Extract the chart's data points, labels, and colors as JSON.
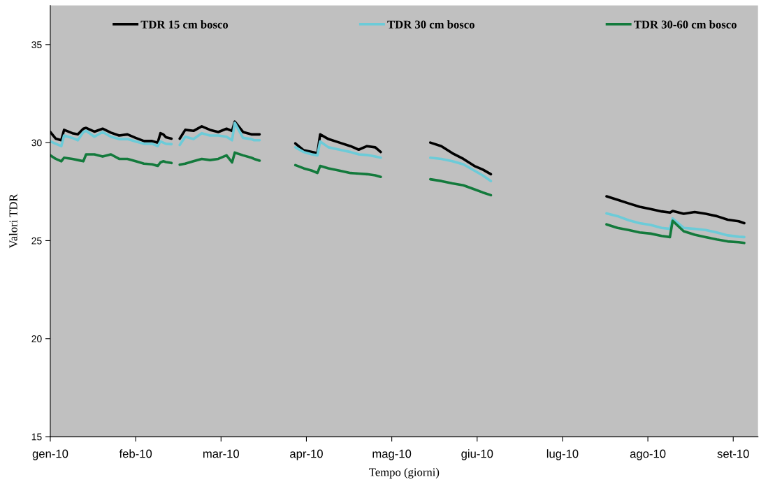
{
  "chart_data": {
    "type": "line",
    "xlabel": "Tempo (giorni)",
    "ylabel": "Valori TDR",
    "x": [
      "2010-01-01",
      "2010-01-03",
      "2010-01-05",
      "2010-01-06",
      "2010-01-09",
      "2010-01-11",
      "2010-01-13",
      "2010-01-14",
      "2010-01-17",
      "2010-01-20",
      "2010-01-23",
      "2010-01-26",
      "2010-01-29",
      "2010-02-01",
      "2010-02-04",
      "2010-02-07",
      "2010-02-09",
      "2010-02-10",
      "2010-02-11",
      "2010-02-12",
      "2010-02-14",
      "2010-02-16",
      "2010-02-17",
      "2010-02-19",
      "2010-02-22",
      "2010-02-25",
      "2010-02-28",
      "2010-03-03",
      "2010-03-06",
      "2010-03-08",
      "2010-03-09",
      "2010-03-12",
      "2010-03-15",
      "2010-03-16",
      "2010-03-18",
      "2010-03-25",
      "2010-03-31",
      "2010-04-03",
      "2010-04-06",
      "2010-04-08",
      "2010-04-09",
      "2010-04-12",
      "2010-04-16",
      "2010-04-20",
      "2010-04-23",
      "2010-04-26",
      "2010-04-29",
      "2010-05-01",
      "2010-05-10",
      "2010-05-19",
      "2010-05-23",
      "2010-05-27",
      "2010-05-31",
      "2010-06-04",
      "2010-06-07",
      "2010-06-10",
      "2010-07-01",
      "2010-07-22",
      "2010-07-26",
      "2010-07-30",
      "2010-08-03",
      "2010-08-07",
      "2010-08-11",
      "2010-08-14",
      "2010-08-15",
      "2010-08-19",
      "2010-08-23",
      "2010-08-27",
      "2010-08-31",
      "2010-09-04",
      "2010-09-08",
      "2010-09-10"
    ],
    "series": [
      {
        "name": "TDR 15 cm bosco",
        "color": "#000000",
        "values": [
          30.54,
          30.2,
          30.12,
          30.65,
          30.48,
          30.42,
          30.71,
          30.75,
          30.56,
          30.71,
          30.51,
          30.36,
          30.42,
          30.24,
          30.08,
          30.08,
          30.0,
          30.48,
          30.42,
          30.27,
          30.2,
          null,
          30.2,
          30.65,
          30.6,
          30.83,
          30.65,
          30.54,
          30.71,
          30.6,
          31.07,
          30.54,
          30.42,
          30.42,
          30.42,
          null,
          29.96,
          29.61,
          29.52,
          29.46,
          30.42,
          30.18,
          30.0,
          29.82,
          29.64,
          29.82,
          29.76,
          29.52,
          null,
          30.0,
          29.82,
          29.46,
          29.17,
          28.81,
          28.63,
          28.39,
          null,
          27.26,
          27.08,
          26.9,
          26.73,
          26.61,
          26.49,
          26.43,
          26.51,
          26.37,
          26.46,
          26.37,
          26.25,
          26.07,
          25.99,
          25.89
        ]
      },
      {
        "name": "TDR 30 cm bosco",
        "color": "#6ccbd8",
        "values": [
          30.06,
          29.94,
          29.82,
          30.36,
          30.24,
          30.12,
          30.54,
          30.6,
          30.3,
          30.54,
          30.3,
          30.18,
          30.18,
          30.06,
          29.94,
          29.94,
          29.82,
          30.06,
          30.0,
          29.94,
          29.92,
          null,
          29.88,
          30.3,
          30.18,
          30.48,
          30.36,
          30.36,
          30.3,
          30.12,
          31.01,
          30.24,
          30.18,
          30.12,
          30.12,
          null,
          29.76,
          29.52,
          29.4,
          29.35,
          30.06,
          29.76,
          29.64,
          29.52,
          29.4,
          29.37,
          29.29,
          29.23,
          null,
          29.23,
          29.17,
          29.05,
          28.89,
          28.57,
          28.33,
          28.04,
          null,
          26.39,
          26.25,
          26.04,
          25.89,
          25.8,
          25.65,
          25.6,
          26.13,
          25.65,
          25.6,
          25.54,
          25.42,
          25.27,
          25.2,
          25.18
        ]
      },
      {
        "name": "TDR 30-60 cm bosco",
        "color": "#137a3c",
        "values": [
          29.35,
          29.17,
          29.05,
          29.23,
          29.17,
          29.11,
          29.05,
          29.4,
          29.4,
          29.29,
          29.4,
          29.17,
          29.17,
          29.05,
          28.93,
          28.89,
          28.81,
          28.99,
          29.05,
          29.01,
          28.96,
          null,
          28.87,
          28.93,
          29.05,
          29.17,
          29.11,
          29.17,
          29.35,
          28.99,
          29.49,
          29.35,
          29.23,
          29.17,
          29.08,
          null,
          28.85,
          28.69,
          28.57,
          28.45,
          28.81,
          28.69,
          28.57,
          28.45,
          28.42,
          28.39,
          28.33,
          28.25,
          null,
          28.13,
          28.04,
          27.92,
          27.82,
          27.62,
          27.46,
          27.32,
          null,
          25.83,
          25.65,
          25.54,
          25.42,
          25.36,
          25.24,
          25.18,
          26.01,
          25.48,
          25.3,
          25.18,
          25.06,
          24.96,
          24.92,
          24.88
        ]
      }
    ],
    "xlim": [
      "2010-01-01",
      "2010-09-15"
    ],
    "xticks": [
      {
        "value": "2010-01-01",
        "label": "gen-10"
      },
      {
        "value": "2010-02-01",
        "label": "feb-10"
      },
      {
        "value": "2010-03-04",
        "label": "mar-10"
      },
      {
        "value": "2010-04-04",
        "label": "apr-10"
      },
      {
        "value": "2010-05-05",
        "label": "mag-10"
      },
      {
        "value": "2010-06-05",
        "label": "giu-10"
      },
      {
        "value": "2010-07-06",
        "label": "lug-10"
      },
      {
        "value": "2010-08-06",
        "label": "ago-10"
      },
      {
        "value": "2010-09-06",
        "label": "set-10"
      }
    ],
    "ylim": [
      15,
      37
    ],
    "yticks": [
      15,
      20,
      25,
      30,
      35
    ],
    "grid": false,
    "legend": "top",
    "line_style": "solid",
    "marker": "none"
  }
}
